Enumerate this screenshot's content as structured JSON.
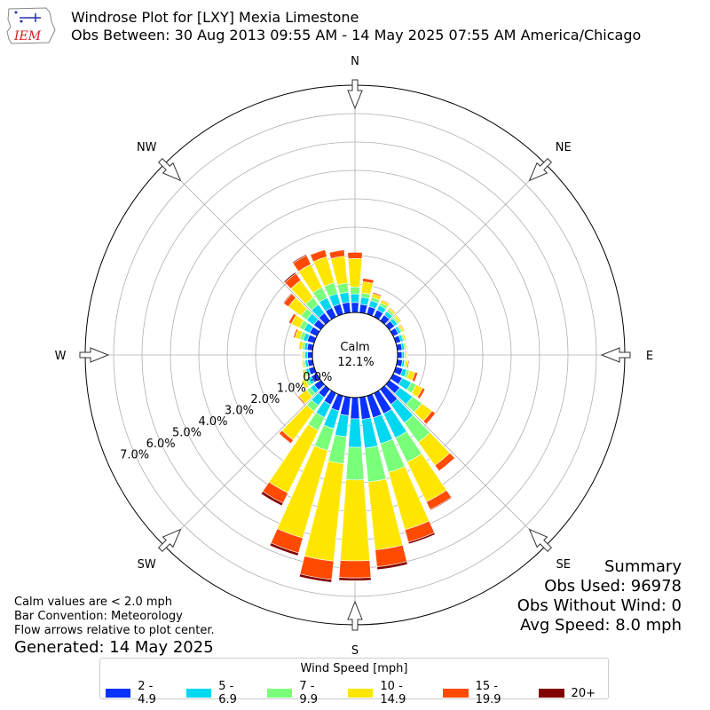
{
  "header": {
    "title": "Windrose Plot for [LXY] Mexia Limestone",
    "subtitle": "Obs Between: 30 Aug 2013 09:55 AM - 14 May 2025 07:55 AM America/Chicago",
    "logo_text": "IEM"
  },
  "footer": {
    "notes": [
      "Calm values are < 2.0 mph",
      "Bar Convention: Meteorology",
      "Flow arrows relative to plot center."
    ],
    "generated": "Generated: 14 May 2025"
  },
  "summary": {
    "title": "Summary",
    "obs_used": "Obs Used: 96978",
    "obs_without_wind": "Obs Without Wind: 0",
    "avg_speed": "Avg Speed: 8.0 mph"
  },
  "legend": {
    "title": "Wind Speed [mph]"
  },
  "colors": {
    "background": "#ffffff",
    "grid": "#b0b0b0",
    "arrow_fill": "#ffffff",
    "arrow_stroke": "#333333"
  },
  "chart_data": {
    "type": "windrose",
    "calm_label": "Calm",
    "calm_value_label": "12.1%",
    "radial_ticks": [
      0,
      1,
      2,
      3,
      4,
      5,
      6,
      7
    ],
    "radial_tick_labels": [
      "0.0%",
      "1.0%",
      "2.0%",
      "3.0%",
      "4.0%",
      "5.0%",
      "6.0%",
      "7.0%"
    ],
    "rmax": 8,
    "direction_labels": [
      "N",
      "NE",
      "E",
      "SE",
      "S",
      "SW",
      "W",
      "NW"
    ],
    "speed_bins": [
      {
        "name": "2 - 4.9",
        "color": "#0a32ff"
      },
      {
        "name": "5 - 6.9",
        "color": "#00d7f0"
      },
      {
        "name": "7 - 9.9",
        "color": "#7aff7a"
      },
      {
        "name": "10 - 14.9",
        "color": "#ffe600"
      },
      {
        "name": "15 - 19.9",
        "color": "#ff4a00"
      },
      {
        "name": "20+",
        "color": "#800000"
      }
    ],
    "directions_deg": [
      0,
      10,
      20,
      30,
      40,
      50,
      60,
      70,
      80,
      90,
      100,
      110,
      120,
      130,
      140,
      150,
      160,
      170,
      180,
      190,
      200,
      210,
      220,
      230,
      240,
      250,
      260,
      270,
      280,
      290,
      300,
      310,
      320,
      330,
      340,
      350
    ],
    "cumulative_percent": [
      [
        0.35,
        0.65,
        0.9,
        1.9,
        2.12,
        2.14
      ],
      [
        0.3,
        0.55,
        0.7,
        1.1,
        1.22,
        1.23
      ],
      [
        0.28,
        0.5,
        0.62,
        0.75,
        0.8,
        0.81
      ],
      [
        0.27,
        0.45,
        0.55,
        0.65,
        0.68,
        0.69
      ],
      [
        0.25,
        0.4,
        0.48,
        0.55,
        0.58,
        0.59
      ],
      [
        0.22,
        0.35,
        0.42,
        0.5,
        0.53,
        0.54
      ],
      [
        0.2,
        0.3,
        0.36,
        0.42,
        0.45,
        0.46
      ],
      [
        0.18,
        0.27,
        0.32,
        0.38,
        0.4,
        0.41
      ],
      [
        0.17,
        0.25,
        0.3,
        0.34,
        0.36,
        0.37
      ],
      [
        0.16,
        0.24,
        0.28,
        0.32,
        0.34,
        0.35
      ],
      [
        0.18,
        0.26,
        0.3,
        0.38,
        0.42,
        0.43
      ],
      [
        0.25,
        0.4,
        0.5,
        0.7,
        0.8,
        0.81
      ],
      [
        0.35,
        0.7,
        0.9,
        1.15,
        1.25,
        1.26
      ],
      [
        0.45,
        1.0,
        1.4,
        1.85,
        2.0,
        2.01
      ],
      [
        0.65,
        1.45,
        2.3,
        3.3,
        3.55,
        3.57
      ],
      [
        0.8,
        1.75,
        2.7,
        4.25,
        4.55,
        4.58
      ],
      [
        0.8,
        1.75,
        2.8,
        4.9,
        5.35,
        5.42
      ],
      [
        0.78,
        1.8,
        3.0,
        5.4,
        6.0,
        6.1
      ],
      [
        0.75,
        1.75,
        2.9,
        5.75,
        6.35,
        6.45
      ],
      [
        0.65,
        1.4,
        2.35,
        5.8,
        6.45,
        6.55
      ],
      [
        0.55,
        1.2,
        2.0,
        5.2,
        5.75,
        5.85
      ],
      [
        0.45,
        0.95,
        1.45,
        3.9,
        4.3,
        4.4
      ],
      [
        0.35,
        0.7,
        0.95,
        2.2,
        2.35,
        2.37
      ],
      [
        0.28,
        0.45,
        0.6,
        0.95,
        1.0,
        1.01
      ],
      [
        0.22,
        0.36,
        0.46,
        0.6,
        0.62,
        0.62
      ],
      [
        0.2,
        0.3,
        0.36,
        0.44,
        0.45,
        0.45
      ],
      [
        0.18,
        0.27,
        0.32,
        0.38,
        0.39,
        0.39
      ],
      [
        0.17,
        0.26,
        0.31,
        0.36,
        0.37,
        0.37
      ],
      [
        0.2,
        0.3,
        0.38,
        0.5,
        0.52,
        0.52
      ],
      [
        0.25,
        0.4,
        0.52,
        0.7,
        0.76,
        0.77
      ],
      [
        0.28,
        0.5,
        0.68,
        1.0,
        1.1,
        1.12
      ],
      [
        0.3,
        0.6,
        0.85,
        1.4,
        1.6,
        1.63
      ],
      [
        0.33,
        0.7,
        1.0,
        1.75,
        2.05,
        2.1
      ],
      [
        0.36,
        0.75,
        1.15,
        2.05,
        2.4,
        2.44
      ],
      [
        0.37,
        0.75,
        1.15,
        2.1,
        2.36,
        2.38
      ],
      [
        0.37,
        0.72,
        1.05,
        2.0,
        2.22,
        2.24
      ]
    ]
  }
}
